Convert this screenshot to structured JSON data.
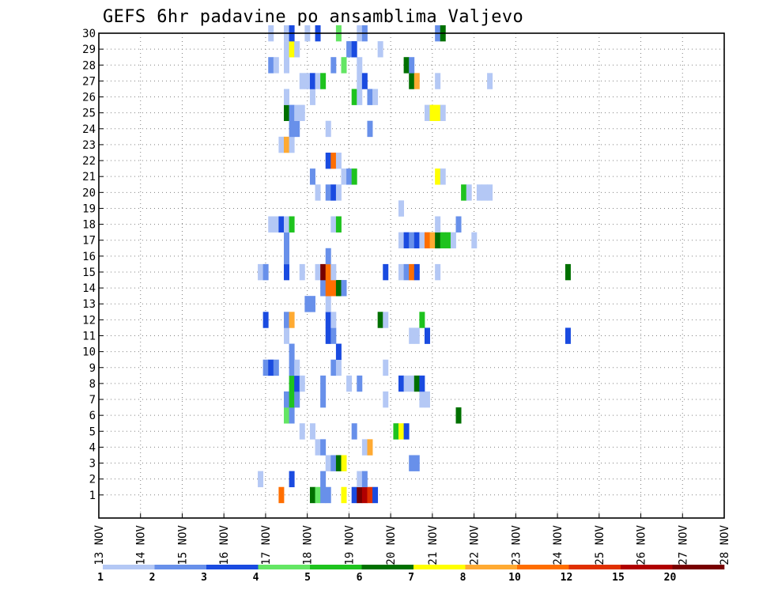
{
  "chart_data": {
    "type": "heatmap",
    "title": "GEFS 6hr padavine po ansamblima Valjevo",
    "xlabel": "",
    "ylabel": "",
    "x_ticks": [
      "13 NOV",
      "14 NOV",
      "15 NOV",
      "16 NOV",
      "17 NOV",
      "18 NOV",
      "19 NOV",
      "20 NOV",
      "21 NOV",
      "22 NOV",
      "23 NOV",
      "24 NOV",
      "25 NOV",
      "26 NOV",
      "27 NOV",
      "28 NOV"
    ],
    "y_ticks": [
      "1",
      "2",
      "3",
      "4",
      "5",
      "6",
      "7",
      "8",
      "9",
      "10",
      "11",
      "12",
      "13",
      "14",
      "15",
      "16",
      "17",
      "18",
      "19",
      "20",
      "21",
      "22",
      "23",
      "24",
      "25",
      "26",
      "27",
      "28",
      "29",
      "30"
    ],
    "xlim": [
      0,
      60
    ],
    "ylim": [
      0,
      30
    ],
    "time_step_hours": 6,
    "grid": true,
    "colorbar": {
      "ticks": [
        "1",
        "2",
        "3",
        "4",
        "5",
        "6",
        "7",
        "8",
        "10",
        "12",
        "15",
        "20"
      ],
      "colors": [
        "#b4c8f5",
        "#6890ea",
        "#1a4be0",
        "#64e664",
        "#1ec31e",
        "#007000",
        "#ffff00",
        "#ffaa32",
        "#ff6e00",
        "#e03000",
        "#b00000",
        "#780000"
      ]
    },
    "cells": [
      [
        1,
        17.5,
        9
      ],
      [
        1,
        20.5,
        6
      ],
      [
        1,
        21,
        4
      ],
      [
        1,
        21.5,
        2
      ],
      [
        1,
        22,
        2
      ],
      [
        1,
        23.5,
        7
      ],
      [
        1,
        24.5,
        3
      ],
      [
        1,
        25,
        12
      ],
      [
        1,
        25.5,
        11
      ],
      [
        1,
        26,
        10
      ],
      [
        1,
        26.5,
        3
      ],
      [
        2,
        18.5,
        3
      ],
      [
        2,
        15.5,
        1
      ],
      [
        2,
        21.5,
        2
      ],
      [
        2,
        25,
        1
      ],
      [
        2,
        25.5,
        2
      ],
      [
        3,
        22,
        1
      ],
      [
        3,
        22.5,
        2
      ],
      [
        3,
        23,
        6
      ],
      [
        3,
        23.5,
        7
      ],
      [
        3,
        30,
        2
      ],
      [
        3,
        30.5,
        2
      ],
      [
        4,
        21,
        1
      ],
      [
        4,
        21.5,
        2
      ],
      [
        4,
        25.5,
        1
      ],
      [
        4,
        26,
        8
      ],
      [
        5,
        19.5,
        1
      ],
      [
        5,
        20.5,
        1
      ],
      [
        5,
        24.5,
        2
      ],
      [
        5,
        28.5,
        5
      ],
      [
        5,
        29,
        7
      ],
      [
        5,
        29.5,
        3
      ],
      [
        6,
        18,
        4
      ],
      [
        6,
        18.5,
        2
      ],
      [
        6,
        34.5,
        6
      ],
      [
        7,
        18,
        2
      ],
      [
        7,
        18.5,
        5
      ],
      [
        7,
        19,
        2
      ],
      [
        7,
        21.5,
        2
      ],
      [
        7,
        27.5,
        1
      ],
      [
        7,
        31,
        1
      ],
      [
        7,
        31.5,
        1
      ],
      [
        8,
        18.5,
        5
      ],
      [
        8,
        19,
        3
      ],
      [
        8,
        19.5,
        1
      ],
      [
        8,
        21.5,
        2
      ],
      [
        8,
        24,
        1
      ],
      [
        8,
        25,
        2
      ],
      [
        8,
        29,
        3
      ],
      [
        8,
        29.5,
        1
      ],
      [
        8,
        30,
        1
      ],
      [
        8,
        30.5,
        6
      ],
      [
        8,
        31,
        3
      ],
      [
        9,
        16,
        2
      ],
      [
        9,
        16.5,
        3
      ],
      [
        9,
        17,
        2
      ],
      [
        9,
        18.5,
        2
      ],
      [
        9,
        19,
        1
      ],
      [
        9,
        22.5,
        2
      ],
      [
        9,
        23,
        1
      ],
      [
        9,
        27.5,
        1
      ],
      [
        10,
        18.5,
        2
      ],
      [
        10,
        23,
        3
      ],
      [
        11,
        18,
        1
      ],
      [
        11,
        22,
        3
      ],
      [
        11,
        22.5,
        2
      ],
      [
        11,
        30,
        1
      ],
      [
        11,
        30.5,
        1
      ],
      [
        11,
        31.5,
        3
      ],
      [
        11,
        45,
        3
      ],
      [
        12,
        16,
        3
      ],
      [
        12,
        18,
        2
      ],
      [
        12,
        18.5,
        8
      ],
      [
        12,
        22,
        3
      ],
      [
        12,
        22.5,
        1
      ],
      [
        12,
        27,
        6
      ],
      [
        12,
        27.5,
        1
      ],
      [
        12,
        31,
        5
      ],
      [
        13,
        20,
        2
      ],
      [
        13,
        20.5,
        2
      ],
      [
        13,
        22,
        1
      ],
      [
        14,
        21.5,
        2
      ],
      [
        14,
        22,
        9
      ],
      [
        14,
        22.5,
        9
      ],
      [
        14,
        23,
        6
      ],
      [
        14,
        23.5,
        2
      ],
      [
        15,
        15.5,
        1
      ],
      [
        15,
        16,
        2
      ],
      [
        15,
        18,
        3
      ],
      [
        15,
        19.5,
        1
      ],
      [
        15,
        21,
        1
      ],
      [
        15,
        21.5,
        12
      ],
      [
        15,
        22,
        9
      ],
      [
        15,
        22.5,
        1
      ],
      [
        15,
        27.5,
        3
      ],
      [
        15,
        29,
        1
      ],
      [
        15,
        29.5,
        2
      ],
      [
        15,
        30,
        9
      ],
      [
        15,
        30.5,
        3
      ],
      [
        15,
        32.5,
        1
      ],
      [
        15,
        45,
        6
      ],
      [
        16,
        18,
        2
      ],
      [
        16,
        22,
        2
      ],
      [
        17,
        18,
        2
      ],
      [
        17,
        29,
        1
      ],
      [
        17,
        29.5,
        3
      ],
      [
        17,
        30,
        2
      ],
      [
        17,
        30.5,
        3
      ],
      [
        17,
        31,
        1
      ],
      [
        17,
        31.5,
        9
      ],
      [
        17,
        32,
        8
      ],
      [
        17,
        32.5,
        6
      ],
      [
        17,
        33,
        5
      ],
      [
        17,
        33.5,
        5
      ],
      [
        17,
        34,
        1
      ],
      [
        17,
        36,
        1
      ],
      [
        18,
        16.5,
        1
      ],
      [
        18,
        17,
        1
      ],
      [
        18,
        17.5,
        3
      ],
      [
        18,
        18,
        1
      ],
      [
        18,
        18.5,
        5
      ],
      [
        18,
        22.5,
        1
      ],
      [
        18,
        23,
        5
      ],
      [
        18,
        32.5,
        1
      ],
      [
        18,
        34.5,
        2
      ],
      [
        19,
        29,
        1
      ],
      [
        20,
        21,
        1
      ],
      [
        20,
        22,
        2
      ],
      [
        20,
        22.5,
        3
      ],
      [
        20,
        23,
        1
      ],
      [
        20,
        35,
        5
      ],
      [
        20,
        35.5,
        1
      ],
      [
        20,
        36.5,
        1
      ],
      [
        20,
        37,
        1
      ],
      [
        20,
        37.5,
        1
      ],
      [
        21,
        20.5,
        2
      ],
      [
        21,
        23.5,
        1
      ],
      [
        21,
        24,
        2
      ],
      [
        21,
        24.5,
        5
      ],
      [
        21,
        32.5,
        7
      ],
      [
        21,
        33,
        1
      ],
      [
        22,
        22,
        3
      ],
      [
        22,
        22.5,
        9
      ],
      [
        22,
        23,
        1
      ],
      [
        23,
        17.5,
        1
      ],
      [
        23,
        18,
        8
      ],
      [
        23,
        18.5,
        1
      ],
      [
        24,
        18.5,
        2
      ],
      [
        24,
        19,
        2
      ],
      [
        24,
        22,
        1
      ],
      [
        24,
        26,
        2
      ],
      [
        25,
        18,
        6
      ],
      [
        25,
        18.5,
        2
      ],
      [
        25,
        19,
        1
      ],
      [
        25,
        19.5,
        1
      ],
      [
        25,
        31.5,
        1
      ],
      [
        25,
        32,
        7
      ],
      [
        25,
        32.5,
        7
      ],
      [
        25,
        33,
        1
      ],
      [
        26,
        18,
        1
      ],
      [
        26,
        20.5,
        1
      ],
      [
        26,
        24.5,
        5
      ],
      [
        26,
        25,
        1
      ],
      [
        26,
        26,
        2
      ],
      [
        26,
        26.5,
        1
      ],
      [
        27,
        19.5,
        1
      ],
      [
        27,
        20,
        1
      ],
      [
        27,
        20.5,
        3
      ],
      [
        27,
        21,
        1
      ],
      [
        27,
        21.5,
        5
      ],
      [
        27,
        25,
        1
      ],
      [
        27,
        25.5,
        3
      ],
      [
        27,
        30,
        6
      ],
      [
        27,
        30.5,
        8
      ],
      [
        27,
        32.5,
        1
      ],
      [
        27,
        37.5,
        1
      ],
      [
        28,
        16.5,
        2
      ],
      [
        28,
        17,
        1
      ],
      [
        28,
        18,
        1
      ],
      [
        28,
        22.5,
        2
      ],
      [
        28,
        23.5,
        4
      ],
      [
        28,
        25,
        1
      ],
      [
        28,
        29.5,
        6
      ],
      [
        28,
        30,
        2
      ],
      [
        29,
        18,
        1
      ],
      [
        29,
        18.5,
        7
      ],
      [
        29,
        19,
        1
      ],
      [
        29,
        24,
        2
      ],
      [
        29,
        24.5,
        3
      ],
      [
        29,
        27,
        1
      ],
      [
        30,
        16.5,
        1
      ],
      [
        30,
        18,
        1
      ],
      [
        30,
        18.5,
        3
      ],
      [
        30,
        20,
        1
      ],
      [
        30,
        21,
        3
      ],
      [
        30,
        23,
        4
      ],
      [
        30,
        25,
        1
      ],
      [
        30,
        25.5,
        2
      ],
      [
        30,
        32.5,
        2
      ],
      [
        30,
        33,
        6
      ]
    ]
  }
}
